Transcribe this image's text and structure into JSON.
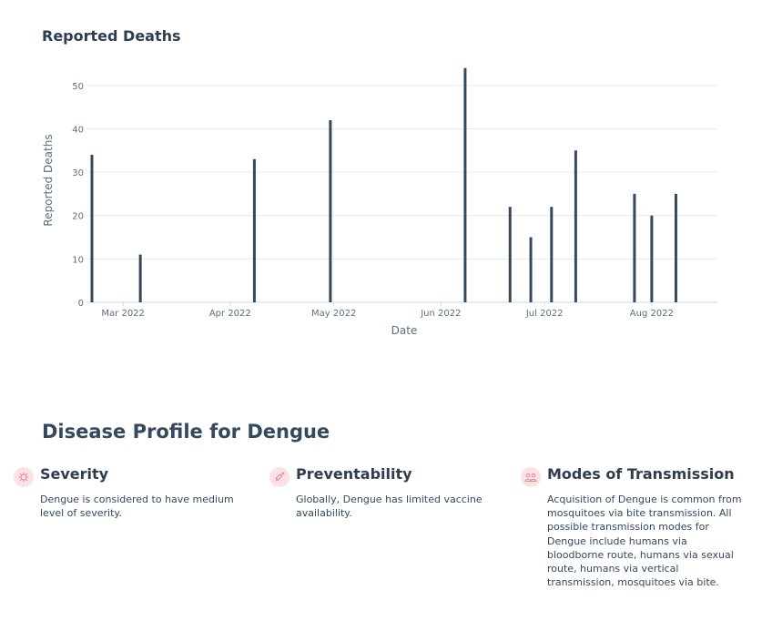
{
  "chart_data": {
    "type": "bar",
    "title": "Reported Deaths",
    "xlabel": "Date",
    "ylabel": "Reported Deaths",
    "ylim": [
      0,
      55
    ],
    "y_ticks": [
      0,
      10,
      20,
      30,
      40,
      50
    ],
    "x_range": [
      "2022-02-20",
      "2022-08-20"
    ],
    "x_ticks": [
      {
        "date": "2022-03-01",
        "label": "Mar 2022"
      },
      {
        "date": "2022-04-01",
        "label": "Apr 2022"
      },
      {
        "date": "2022-05-01",
        "label": "May 2022"
      },
      {
        "date": "2022-06-01",
        "label": "Jun 2022"
      },
      {
        "date": "2022-07-01",
        "label": "Jul 2022"
      },
      {
        "date": "2022-08-01",
        "label": "Aug 2022"
      }
    ],
    "grid": "horizontal",
    "bar_color": "#34495e",
    "points": [
      {
        "x": "2022-02-20",
        "y": 34
      },
      {
        "x": "2022-03-06",
        "y": 11
      },
      {
        "x": "2022-04-08",
        "y": 33
      },
      {
        "x": "2022-04-30",
        "y": 42
      },
      {
        "x": "2022-06-08",
        "y": 54
      },
      {
        "x": "2022-06-21",
        "y": 22
      },
      {
        "x": "2022-06-27",
        "y": 15
      },
      {
        "x": "2022-07-03",
        "y": 22
      },
      {
        "x": "2022-07-10",
        "y": 35
      },
      {
        "x": "2022-07-27",
        "y": 25
      },
      {
        "x": "2022-08-01",
        "y": 20
      },
      {
        "x": "2022-08-08",
        "y": 25
      }
    ]
  },
  "profile": {
    "title": "Disease Profile for Dengue",
    "accent_color": "#fbe3e5",
    "icon_color": "#e08a93",
    "cards": [
      {
        "icon": "virus-icon",
        "title": "Severity",
        "text": "Dengue is considered to have medium level of severity."
      },
      {
        "icon": "syringe-icon",
        "title": "Preventability",
        "text": "Globally, Dengue has limited vaccine availability."
      },
      {
        "icon": "people-icon",
        "title": "Modes of Transmission",
        "text": "Acquisition of Dengue is common from mosquitoes via bite transmission. All possible transmission modes for Dengue include humans via bloodborne route, humans via sexual route, humans via vertical transmission, mosquitoes via bite."
      }
    ]
  }
}
